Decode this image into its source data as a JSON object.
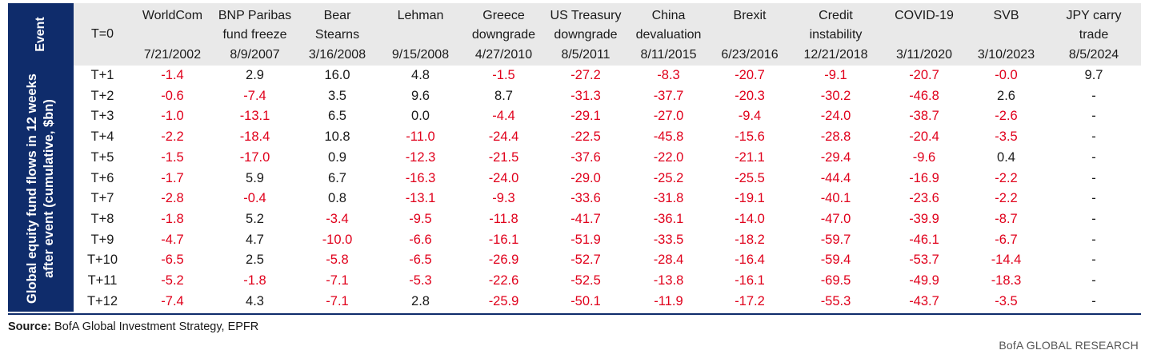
{
  "side_labels": {
    "event": "Event",
    "body": "Global equity fund flows in 12 weeks after event (cumulative, $bn)"
  },
  "header": {
    "t0_label": "T=0",
    "events": [
      {
        "name_lines": [
          "WorldCom"
        ],
        "date": "7/21/2002"
      },
      {
        "name_lines": [
          "BNP Paribas",
          "fund freeze"
        ],
        "date": "8/9/2007"
      },
      {
        "name_lines": [
          "Bear",
          "Stearns"
        ],
        "date": "3/16/2008"
      },
      {
        "name_lines": [
          "Lehman"
        ],
        "date": "9/15/2008"
      },
      {
        "name_lines": [
          "Greece",
          "downgrade"
        ],
        "date": "4/27/2010"
      },
      {
        "name_lines": [
          "US Treasury",
          "downgrade"
        ],
        "date": "8/5/2011"
      },
      {
        "name_lines": [
          "China",
          "devaluation"
        ],
        "date": "8/11/2015"
      },
      {
        "name_lines": [
          "Brexit"
        ],
        "date": "6/23/2016"
      },
      {
        "name_lines": [
          "Credit",
          "instability"
        ],
        "date": "12/21/2018"
      },
      {
        "name_lines": [
          "COVID-19"
        ],
        "date": "3/11/2020"
      },
      {
        "name_lines": [
          "SVB"
        ],
        "date": "3/10/2023"
      },
      {
        "name_lines": [
          "JPY carry",
          "trade"
        ],
        "date": "8/5/2024"
      }
    ]
  },
  "rows": [
    {
      "label": "T+1",
      "values": [
        "-1.4",
        "2.9",
        "16.0",
        "4.8",
        "-1.5",
        "-27.2",
        "-8.3",
        "-20.7",
        "-9.1",
        "-20.7",
        "-0.0",
        "9.7"
      ]
    },
    {
      "label": "T+2",
      "values": [
        "-0.6",
        "-7.4",
        "3.5",
        "9.6",
        "8.7",
        "-31.3",
        "-37.7",
        "-20.3",
        "-30.2",
        "-46.8",
        "2.6",
        "-"
      ]
    },
    {
      "label": "T+3",
      "values": [
        "-1.0",
        "-13.1",
        "6.5",
        "0.0",
        "-4.4",
        "-29.1",
        "-27.0",
        "-9.4",
        "-24.0",
        "-38.7",
        "-2.6",
        "-"
      ]
    },
    {
      "label": "T+4",
      "values": [
        "-2.2",
        "-18.4",
        "10.8",
        "-11.0",
        "-24.4",
        "-22.5",
        "-45.8",
        "-15.6",
        "-28.8",
        "-20.4",
        "-3.5",
        "-"
      ]
    },
    {
      "label": "T+5",
      "values": [
        "-1.5",
        "-17.0",
        "0.9",
        "-12.3",
        "-21.5",
        "-37.6",
        "-22.0",
        "-21.1",
        "-29.4",
        "-9.6",
        "0.4",
        "-"
      ]
    },
    {
      "label": "T+6",
      "values": [
        "-1.7",
        "5.9",
        "6.7",
        "-16.3",
        "-24.0",
        "-29.0",
        "-25.2",
        "-25.5",
        "-44.4",
        "-16.9",
        "-2.2",
        "-"
      ]
    },
    {
      "label": "T+7",
      "values": [
        "-2.8",
        "-0.4",
        "0.8",
        "-13.1",
        "-9.3",
        "-33.6",
        "-31.8",
        "-19.1",
        "-40.1",
        "-23.6",
        "-2.2",
        "-"
      ]
    },
    {
      "label": "T+8",
      "values": [
        "-1.8",
        "5.2",
        "-3.4",
        "-9.5",
        "-11.8",
        "-41.7",
        "-36.1",
        "-14.0",
        "-47.0",
        "-39.9",
        "-8.7",
        "-"
      ]
    },
    {
      "label": "T+9",
      "values": [
        "-4.7",
        "4.7",
        "-10.0",
        "-6.6",
        "-16.1",
        "-51.9",
        "-33.5",
        "-18.2",
        "-59.7",
        "-46.1",
        "-6.7",
        "-"
      ]
    },
    {
      "label": "T+10",
      "values": [
        "-6.5",
        "2.5",
        "-5.8",
        "-6.5",
        "-26.9",
        "-52.7",
        "-28.4",
        "-16.4",
        "-59.4",
        "-53.7",
        "-14.4",
        "-"
      ]
    },
    {
      "label": "T+11",
      "values": [
        "-5.2",
        "-1.8",
        "-7.1",
        "-5.3",
        "-22.6",
        "-52.5",
        "-13.8",
        "-16.1",
        "-69.5",
        "-49.9",
        "-18.3",
        "-"
      ]
    },
    {
      "label": "T+12",
      "values": [
        "-7.4",
        "4.3",
        "-7.1",
        "2.8",
        "-25.9",
        "-50.1",
        "-11.9",
        "-17.2",
        "-55.3",
        "-43.7",
        "-3.5",
        "-"
      ]
    }
  ],
  "colors": {
    "navy": "#0f2c6b",
    "header_bg": "#e9e9e9",
    "negative": "#e0001b",
    "positive": "#1a1a1a"
  },
  "footer": {
    "source_label": "Source:",
    "source_text": " BofA Global Investment Strategy, EPFR",
    "brand": "BofA GLOBAL RESEARCH"
  }
}
